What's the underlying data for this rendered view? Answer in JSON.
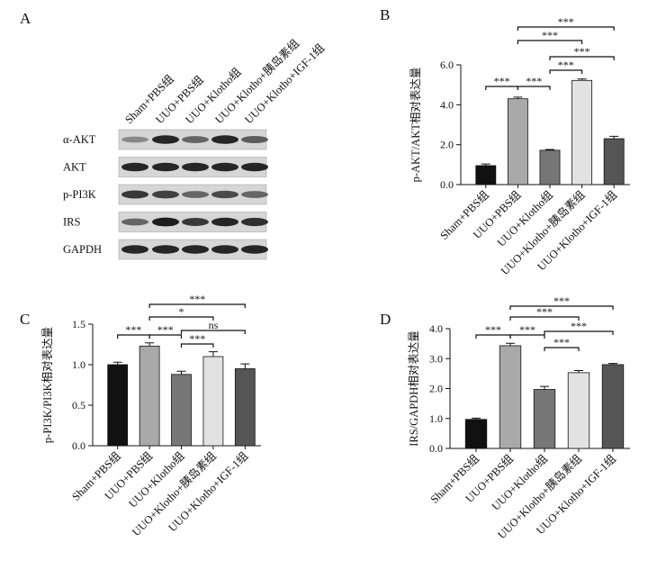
{
  "panel_a": {
    "label": "A",
    "samples": [
      "Sham+PBS组",
      "UUO+PBS组",
      "UUO+Klotho组",
      "UUO+Klotho+胰岛素组",
      "UUO+Klotho+IGF-1组"
    ],
    "proteins": [
      "α-AKT",
      "AKT",
      "p-PI3K",
      "IRS",
      "GAPDH"
    ]
  },
  "chart_data": [
    {
      "type": "bar",
      "panel": "B",
      "y_label": "p-AKT/AKT相对表达量",
      "categories": [
        "Sham+PBS组",
        "UUO+PBS组",
        "UUO+Klotho组",
        "UUO+Klotho+胰岛素组",
        "UUO+Klotho+IGF-1组"
      ],
      "values": [
        0.95,
        4.3,
        1.72,
        5.22,
        2.3
      ],
      "errors": [
        0.08,
        0.08,
        0.04,
        0.07,
        0.12
      ],
      "colors": [
        "#111111",
        "#a9a9a9",
        "#777777",
        "#e2e2e2",
        "#555555"
      ],
      "ylim": [
        0,
        6
      ],
      "yticks": [
        {
          "value": 0,
          "label": "0.0"
        },
        {
          "value": 2,
          "label": "2.0"
        },
        {
          "value": 4,
          "label": "4.0"
        },
        {
          "value": 6,
          "label": "6.0"
        }
      ],
      "annotations": [
        "***",
        "***",
        "***",
        "***",
        "***",
        "***"
      ]
    },
    {
      "type": "bar",
      "panel": "C",
      "y_label": "p-PI3K/PI3K相对表达量",
      "categories": [
        "Sham+PBS组",
        "UUO+PBS组",
        "UUO+Klotho组",
        "UUO+Klotho+胰岛素组",
        "UUO+Klotho+IGF-1组"
      ],
      "values": [
        1.0,
        1.23,
        0.88,
        1.1,
        0.95
      ],
      "errors": [
        0.03,
        0.04,
        0.04,
        0.06,
        0.06
      ],
      "colors": [
        "#111111",
        "#a9a9a9",
        "#777777",
        "#e2e2e2",
        "#555555"
      ],
      "ylim": [
        0,
        1.5
      ],
      "yticks": [
        {
          "value": 0,
          "label": "0.0"
        },
        {
          "value": 0.5,
          "label": "0.5"
        },
        {
          "value": 1,
          "label": "1.0"
        },
        {
          "value": 1.5,
          "label": "1.5"
        }
      ],
      "annotations": [
        "***",
        "***",
        "***",
        "ns",
        "*",
        "***"
      ]
    },
    {
      "type": "bar",
      "panel": "D",
      "y_label": "IRS/GAPDH相对表达量",
      "categories": [
        "Sham+PBS组",
        "UUO+PBS组",
        "UUO+Klotho组",
        "UUO+Klotho+胰岛素组",
        "UUO+Klotho+IGF-1组"
      ],
      "values": [
        0.97,
        3.43,
        1.97,
        2.53,
        2.8
      ],
      "errors": [
        0.04,
        0.08,
        0.1,
        0.07,
        0.04
      ],
      "colors": [
        "#111111",
        "#a9a9a9",
        "#777777",
        "#e2e2e2",
        "#555555"
      ],
      "ylim": [
        0,
        4
      ],
      "yticks": [
        {
          "value": 0,
          "label": "0.0"
        },
        {
          "value": 1,
          "label": "1.0"
        },
        {
          "value": 2,
          "label": "2.0"
        },
        {
          "value": 3,
          "label": "3.0"
        },
        {
          "value": 4,
          "label": "4.0"
        }
      ],
      "annotations": [
        "***",
        "***",
        "***",
        "***",
        "***",
        "***"
      ]
    }
  ]
}
